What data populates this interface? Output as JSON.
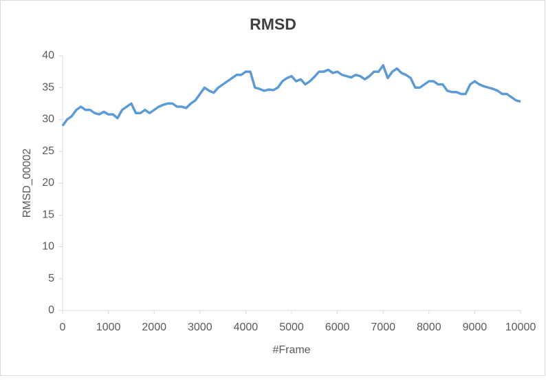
{
  "chart_data": {
    "type": "line",
    "title": "RMSD",
    "x_label": "#Frame",
    "y_label": "RMSD_00002",
    "x": [
      0,
      100,
      200,
      300,
      400,
      500,
      600,
      700,
      800,
      900,
      1000,
      1100,
      1200,
      1300,
      1400,
      1500,
      1600,
      1700,
      1800,
      1900,
      2000,
      2100,
      2200,
      2300,
      2400,
      2500,
      2600,
      2700,
      2800,
      2900,
      3000,
      3100,
      3200,
      3300,
      3400,
      3500,
      3600,
      3700,
      3800,
      3900,
      4000,
      4100,
      4200,
      4300,
      4400,
      4500,
      4600,
      4700,
      4800,
      4900,
      5000,
      5100,
      5200,
      5300,
      5400,
      5500,
      5600,
      5700,
      5800,
      5900,
      6000,
      6100,
      6200,
      6300,
      6400,
      6500,
      6600,
      6700,
      6800,
      6900,
      7000,
      7100,
      7200,
      7300,
      7400,
      7500,
      7600,
      7700,
      7800,
      7900,
      8000,
      8100,
      8200,
      8300,
      8400,
      8500,
      8600,
      8700,
      8800,
      8900,
      9000,
      9100,
      9200,
      9300,
      9400,
      9500,
      9600,
      9700,
      9800,
      9900,
      10000
    ],
    "series": [
      {
        "name": "RMSD_00002",
        "color": "#5b9bd5",
        "values": [
          29,
          30,
          30.5,
          31.5,
          32,
          31.5,
          31.5,
          31,
          30.8,
          31.2,
          30.8,
          30.8,
          30.2,
          31.5,
          32,
          32.5,
          31,
          31,
          31.5,
          31,
          31.5,
          32,
          32.3,
          32.5,
          32.5,
          32,
          32,
          31.8,
          32.5,
          33,
          34,
          35,
          34.5,
          34.2,
          35,
          35.5,
          36,
          36.5,
          37,
          37,
          37.5,
          37.5,
          35,
          34.8,
          34.5,
          34.7,
          34.6,
          35,
          36,
          36.5,
          36.8,
          36,
          36.3,
          35.5,
          36,
          36.7,
          37.5,
          37.5,
          37.8,
          37.3,
          37.5,
          37,
          36.8,
          36.6,
          37,
          36.8,
          36.3,
          36.8,
          37.5,
          37.5,
          38.5,
          36.5,
          37.5,
          38,
          37.3,
          37,
          36.5,
          35,
          35,
          35.5,
          36,
          36,
          35.5,
          35.5,
          34.5,
          34.3,
          34.3,
          34,
          34,
          35.5,
          36,
          35.5,
          35.2,
          35,
          34.8,
          34.5,
          34,
          34,
          33.5,
          33,
          32.8
        ]
      }
    ],
    "xlim": [
      0,
      10000
    ],
    "xticks": [
      0,
      1000,
      2000,
      3000,
      4000,
      5000,
      6000,
      7000,
      8000,
      9000,
      10000
    ],
    "ylim": [
      0,
      40
    ],
    "yticks": [
      0,
      5,
      10,
      15,
      20,
      25,
      30,
      35,
      40
    ],
    "grid": false
  }
}
